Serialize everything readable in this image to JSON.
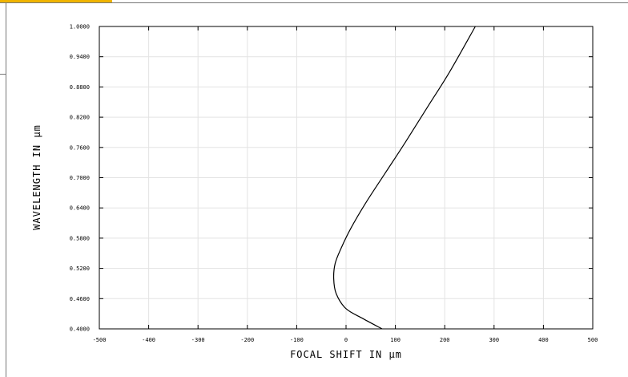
{
  "chart_data": {
    "type": "line",
    "title": "",
    "xlabel": "FOCAL SHIFT IN µm",
    "ylabel": "WAVELENGTH IN µm",
    "xlim": [
      -500,
      500
    ],
    "ylim": [
      0.4,
      1.0
    ],
    "x_ticks": [
      -500,
      -400,
      -300,
      -200,
      -100,
      0,
      100,
      200,
      300,
      400,
      500
    ],
    "x_tick_labels": [
      "-500",
      "-400",
      "-300",
      "-200",
      "-100",
      "0",
      "100",
      "200",
      "300",
      "400",
      "500"
    ],
    "y_ticks": [
      0.4,
      0.46,
      0.52,
      0.58,
      0.64,
      0.7,
      0.76,
      0.82,
      0.88,
      0.94,
      1.0
    ],
    "y_tick_labels": [
      "0.4000",
      "0.4600",
      "0.5200",
      "0.5800",
      "0.6400",
      "0.7000",
      "0.7600",
      "0.8200",
      "0.8800",
      "0.9400",
      "1.0000"
    ],
    "grid": true,
    "series": [
      {
        "color": "#000000",
        "x": [
          73,
          35,
          0,
          -20,
          -25,
          -22,
          -10,
          10,
          40,
          80,
          120,
          165,
          210,
          262
        ],
        "y": [
          0.4,
          0.42,
          0.44,
          0.47,
          0.5,
          0.53,
          0.56,
          0.6,
          0.65,
          0.71,
          0.77,
          0.84,
          0.91,
          1.0
        ]
      }
    ]
  }
}
